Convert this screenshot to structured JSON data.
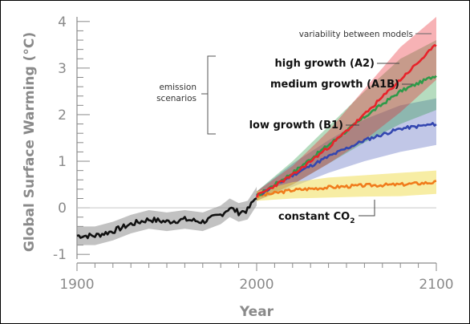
{
  "chart_data": {
    "type": "line",
    "xlabel": "Year",
    "ylabel": "Global Surface Warming (°C)",
    "xlim": [
      1900,
      2100
    ],
    "ylim": [
      -1.1,
      4.1
    ],
    "x_ticks": [
      "1900",
      "2000",
      "2100"
    ],
    "y_ticks": [
      "-1",
      "0",
      "1",
      "2",
      "3",
      "4"
    ],
    "grid": false,
    "baseline": 0,
    "colors": {
      "observed": "#111111",
      "observed_band": "#9a9a9a",
      "a2": "#e8232a",
      "a1b": "#2e9a49",
      "b1": "#3346b0",
      "constant": "#f07c1c",
      "constant_band": "#f1de5a",
      "axis": "#8a8a8a"
    },
    "observed": {
      "x": [
        1900,
        1910,
        1920,
        1930,
        1940,
        1950,
        1960,
        1970,
        1980,
        1985,
        1990,
        1995,
        2000
      ],
      "y": [
        -0.6,
        -0.6,
        -0.5,
        -0.35,
        -0.25,
        -0.3,
        -0.25,
        -0.3,
        -0.15,
        0.0,
        -0.1,
        -0.05,
        0.25
      ],
      "spread": 0.2
    },
    "series": [
      {
        "key": "a2",
        "x": [
          2000,
          2020,
          2040,
          2060,
          2080,
          2100
        ],
        "y": [
          0.25,
          0.7,
          1.3,
          2.0,
          2.75,
          3.5
        ],
        "lower": [
          0.15,
          0.5,
          0.95,
          1.45,
          2.05,
          2.75
        ],
        "upper": [
          0.35,
          0.9,
          1.65,
          2.55,
          3.45,
          4.1
        ]
      },
      {
        "key": "a1b",
        "x": [
          2000,
          2020,
          2040,
          2060,
          2080,
          2100
        ],
        "y": [
          0.25,
          0.75,
          1.35,
          1.95,
          2.5,
          2.85
        ],
        "lower": [
          0.15,
          0.5,
          0.95,
          1.4,
          1.8,
          2.1
        ],
        "upper": [
          0.35,
          1.0,
          1.75,
          2.5,
          3.2,
          3.6
        ]
      },
      {
        "key": "b1",
        "x": [
          2000,
          2020,
          2040,
          2060,
          2080,
          2100
        ],
        "y": [
          0.25,
          0.7,
          1.1,
          1.45,
          1.7,
          1.8
        ],
        "lower": [
          0.15,
          0.45,
          0.75,
          1.0,
          1.2,
          1.35
        ],
        "upper": [
          0.35,
          0.95,
          1.45,
          1.9,
          2.2,
          2.35
        ]
      },
      {
        "key": "constant",
        "x": [
          2000,
          2020,
          2040,
          2060,
          2080,
          2100
        ],
        "y": [
          0.25,
          0.38,
          0.44,
          0.48,
          0.5,
          0.55
        ],
        "lower": [
          0.15,
          0.2,
          0.22,
          0.24,
          0.25,
          0.3
        ],
        "upper": [
          0.35,
          0.55,
          0.65,
          0.7,
          0.75,
          0.8
        ]
      }
    ],
    "annotations": {
      "variability": "variability between models",
      "high": "high growth (A2)",
      "medium": "medium growth (A1B)",
      "low": "low growth (B1)",
      "constant_prefix": "constant CO",
      "constant_sub": "2",
      "emission_line1": "emission",
      "emission_line2": "scenarios"
    }
  }
}
